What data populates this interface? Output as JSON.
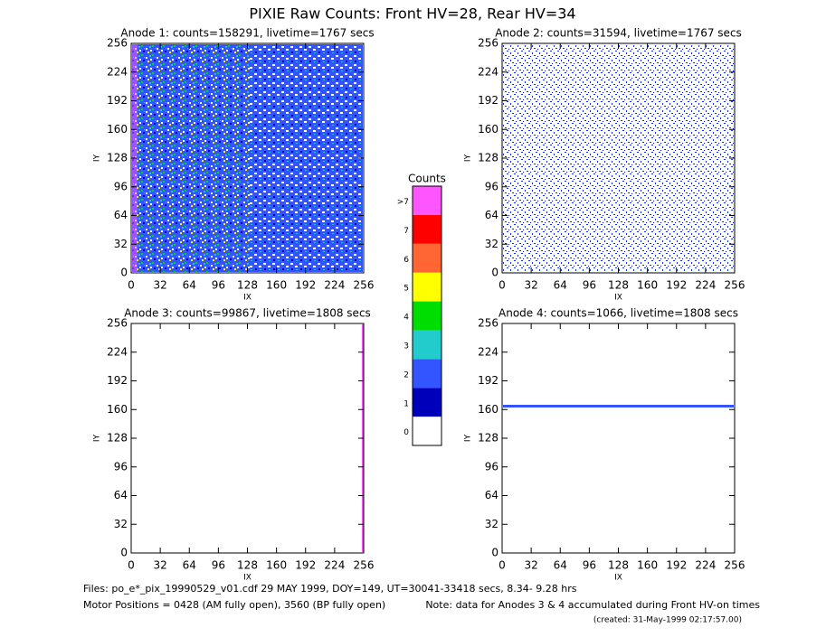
{
  "title": "PIXIE Raw Counts:  Front HV=28, Rear HV=34",
  "chart_data": [
    {
      "type": "heatmap",
      "title": "Anode 1: counts=158291, livetime=1767 secs",
      "x_label": "IX",
      "y_label": "IY",
      "xlim": [
        0,
        256
      ],
      "ylim": [
        0,
        256
      ],
      "xticks": [
        0,
        32,
        64,
        96,
        128,
        160,
        192,
        224,
        256
      ],
      "yticks": [
        0,
        32,
        64,
        96,
        128,
        160,
        192,
        224,
        256
      ]
    },
    {
      "type": "heatmap",
      "title": "Anode 2: counts=31594, livetime=1767 secs",
      "x_label": "IX",
      "y_label": "IY",
      "xlim": [
        0,
        256
      ],
      "ylim": [
        0,
        256
      ],
      "xticks": [
        0,
        32,
        64,
        96,
        128,
        160,
        192,
        224,
        256
      ],
      "yticks": [
        0,
        32,
        64,
        96,
        128,
        160,
        192,
        224,
        256
      ]
    },
    {
      "type": "heatmap",
      "title": "Anode 3: counts=99867, livetime=1808 secs",
      "x_label": "IX",
      "y_label": "IY",
      "xlim": [
        0,
        256
      ],
      "ylim": [
        0,
        256
      ],
      "xticks": [
        0,
        32,
        64,
        96,
        128,
        160,
        192,
        224,
        256
      ],
      "yticks": [
        0,
        32,
        64,
        96,
        128,
        160,
        192,
        224,
        256
      ]
    },
    {
      "type": "heatmap",
      "title": "Anode 4: counts=1066, livetime=1808 secs",
      "x_label": "IX",
      "y_label": "IY",
      "xlim": [
        0,
        256
      ],
      "ylim": [
        0,
        256
      ],
      "xticks": [
        0,
        32,
        64,
        96,
        128,
        160,
        192,
        224,
        256
      ],
      "yticks": [
        0,
        32,
        64,
        96,
        128,
        160,
        192,
        224,
        256
      ]
    }
  ],
  "colorbar": {
    "title": "Counts",
    "labels": [
      "0",
      "1",
      "2",
      "3",
      "4",
      "5",
      "6",
      "7",
      ">7"
    ],
    "colors": [
      "#ffffff",
      "#0000bb",
      "#3355ff",
      "#22cccc",
      "#00dd00",
      "#ffff00",
      "#ff6633",
      "#ff0000",
      "#ff55ff"
    ]
  },
  "footer": {
    "files": "Files: po_e*_pix_19990529_v01.cdf    29 MAY 1999, DOY=149, UT=30041-33418 secs,  8.34- 9.28 hrs",
    "motor": "Motor Positions = 0428 (AM fully open), 3560 (BP fully open)",
    "note": "Note: data for Anodes 3 & 4 accumulated during Front HV-on times",
    "created": "(created: 31-May-1999 02:17:57.00)"
  }
}
